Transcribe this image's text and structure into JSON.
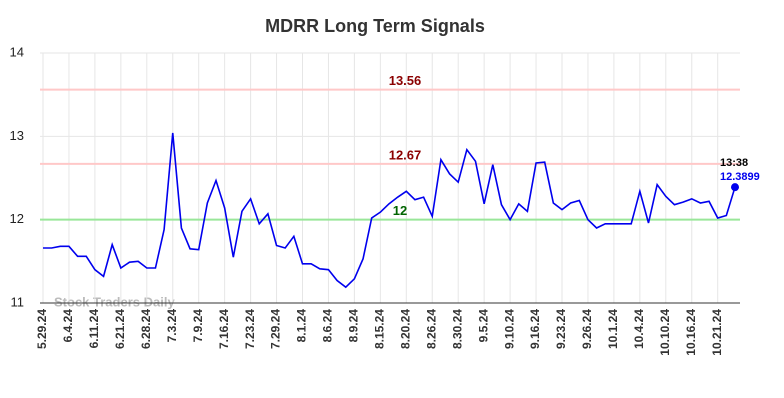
{
  "chart_data": {
    "type": "line",
    "title": "MDRR Long Term Signals",
    "categories": [
      "5.29.24",
      null,
      null,
      "6.4.24",
      null,
      null,
      "6.11.24",
      null,
      null,
      "6.21.24",
      null,
      null,
      "6.28.24",
      null,
      null,
      "7.3.24",
      null,
      null,
      "7.9.24",
      null,
      null,
      "7.16.24",
      null,
      null,
      "7.23.24",
      null,
      null,
      "7.29.24",
      null,
      null,
      "8.1.24",
      null,
      null,
      "8.6.24",
      null,
      null,
      "8.9.24",
      null,
      null,
      "8.15.24",
      null,
      null,
      "8.20.24",
      null,
      null,
      "8.26.24",
      null,
      null,
      "8.30.24",
      null,
      null,
      "9.5.24",
      null,
      null,
      "9.10.24",
      null,
      null,
      "9.16.24",
      null,
      null,
      "9.23.24",
      null,
      null,
      "9.26.24",
      null,
      null,
      "10.1.24",
      null,
      null,
      "10.4.24",
      null,
      null,
      "10.10.24",
      null,
      null,
      "10.16.24",
      null,
      null,
      "10.21.24",
      null,
      null
    ],
    "values": [
      11.66,
      11.66,
      11.68,
      11.68,
      11.56,
      11.56,
      11.4,
      11.32,
      11.7,
      11.42,
      11.49,
      11.5,
      11.42,
      11.42,
      11.88,
      13.04,
      11.9,
      11.65,
      11.64,
      12.2,
      12.47,
      12.14,
      11.55,
      12.1,
      12.25,
      11.95,
      12.07,
      11.69,
      11.66,
      11.8,
      11.47,
      11.47,
      11.41,
      11.4,
      11.27,
      11.19,
      11.29,
      11.53,
      12.02,
      12.09,
      12.19,
      12.27,
      12.34,
      12.24,
      12.27,
      12.04,
      12.72,
      12.55,
      12.45,
      12.84,
      12.7,
      12.19,
      12.66,
      12.18,
      12.0,
      12.19,
      12.1,
      12.68,
      12.69,
      12.2,
      12.12,
      12.2,
      12.23,
      12.0,
      11.9,
      11.95,
      11.95,
      11.95,
      11.95,
      12.34,
      11.96,
      12.42,
      12.28,
      12.18,
      12.21,
      12.25,
      12.2,
      12.22,
      12.02,
      12.05,
      12.3899
    ],
    "color": "#0000ee",
    "hlines": [
      {
        "value": 13.56,
        "line_color": "#ffc8c8",
        "label_color": "#8b0000"
      },
      {
        "value": 12.67,
        "line_color": "#ffc8c8",
        "label_color": "#8b0000"
      },
      {
        "value": 12,
        "line_color": "#99e699",
        "label_color": "#006400"
      }
    ],
    "last_time": "13:38",
    "watermark": "Stock Traders Daily",
    "ylim": [
      11,
      14
    ],
    "yticks": [
      11,
      12,
      13,
      14
    ],
    "grid": true
  }
}
